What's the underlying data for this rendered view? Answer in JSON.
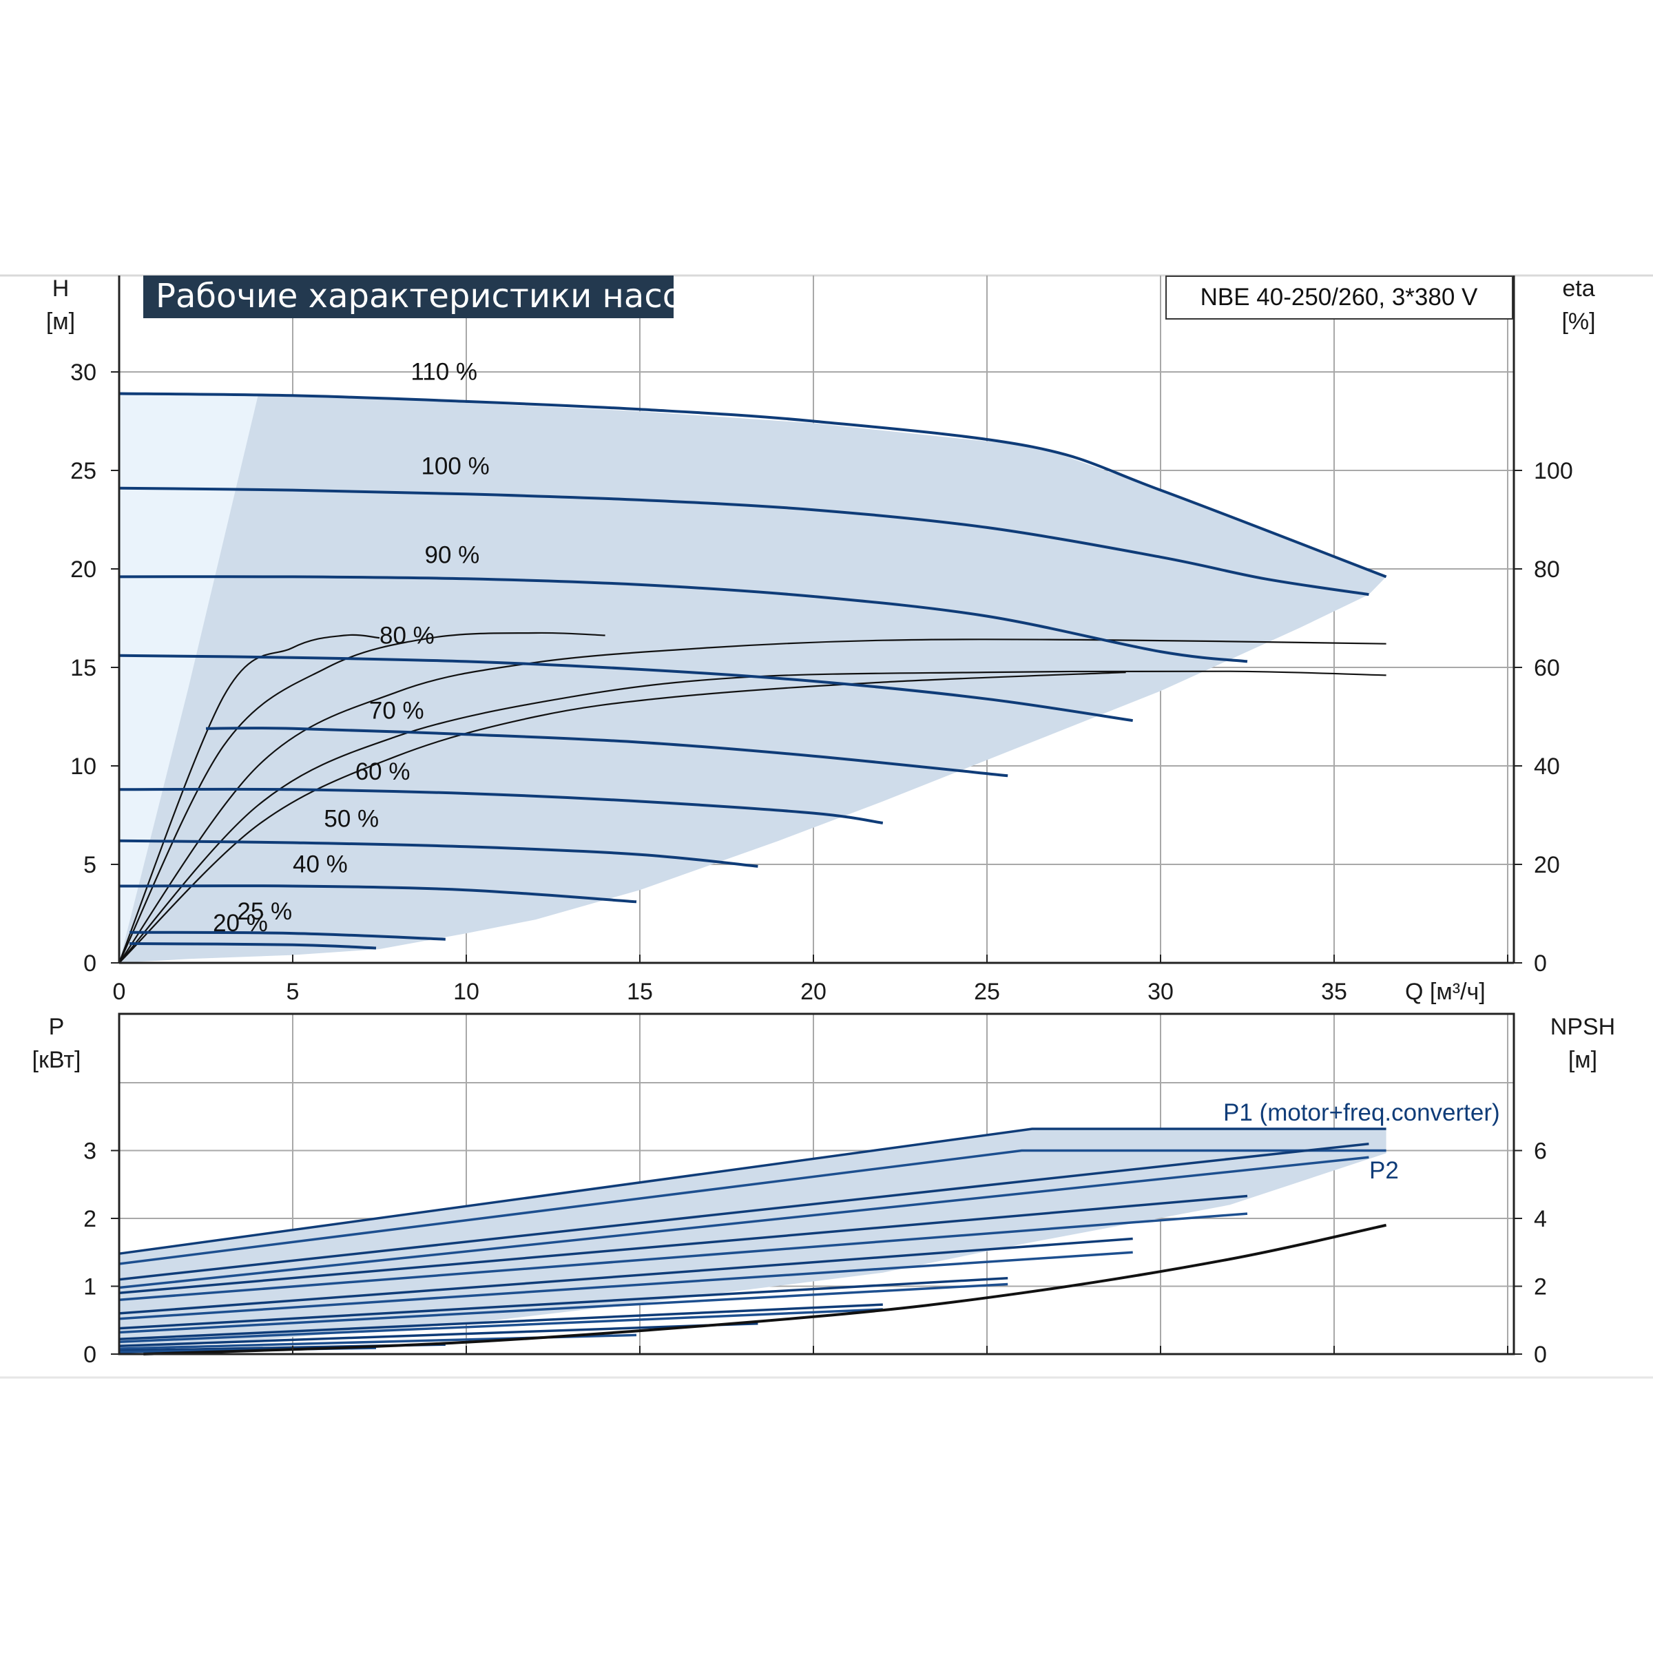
{
  "title": "Рабочие характеристики насоса",
  "model": "NBE 40-250/260, 3*380 V",
  "colors": {
    "curve": "#0f3c78",
    "envelope": "#cfdcea",
    "envelope_light": "#eaf3fb",
    "title_bg": "#23394f",
    "grid": "#a8a8a8",
    "eta": "#111111"
  },
  "chart_data": [
    {
      "type": "line",
      "name": "head",
      "xlabel": "Q [м³/ч]",
      "ylabel_left": [
        "H",
        "[м]"
      ],
      "ylabel_right": [
        "eta",
        "[%]"
      ],
      "xlim": [
        0,
        40
      ],
      "ylim": [
        0,
        30
      ],
      "y2lim": [
        0,
        120
      ],
      "xticks": [
        0,
        5,
        10,
        15,
        20,
        25,
        30,
        35
      ],
      "yticks": [
        0,
        5,
        10,
        15,
        20,
        25,
        30
      ],
      "y2ticks": [
        0,
        20,
        40,
        60,
        80,
        100
      ],
      "grid": true,
      "envelope_head": [
        [
          0,
          29
        ],
        [
          8,
          28.6
        ],
        [
          15,
          28
        ],
        [
          20,
          27.4
        ],
        [
          26.5,
          26.2
        ],
        [
          30,
          24
        ],
        [
          33,
          22
        ],
        [
          36.5,
          19.6
        ],
        [
          36,
          18.7
        ],
        [
          34,
          17
        ],
        [
          30,
          13.8
        ],
        [
          26,
          11
        ],
        [
          22,
          8.2
        ],
        [
          19,
          6.2
        ],
        [
          15,
          3.7
        ],
        [
          12,
          2.2
        ],
        [
          10,
          1.5
        ],
        [
          7.5,
          0.7
        ],
        [
          5,
          0.4
        ],
        [
          2,
          0.2
        ],
        [
          0,
          0
        ]
      ],
      "series": [
        {
          "speed": "110 %",
          "label_xy": [
            8.4,
            29.6
          ],
          "points": [
            [
              0,
              28.9
            ],
            [
              5,
              28.8
            ],
            [
              10,
              28.5
            ],
            [
              15,
              28.1
            ],
            [
              20,
              27.5
            ],
            [
              26.3,
              26.2
            ],
            [
              30,
              24.0
            ],
            [
              36.5,
              19.6
            ]
          ]
        },
        {
          "speed": "100 %",
          "label_xy": [
            8.7,
            24.8
          ],
          "points": [
            [
              0,
              24.1
            ],
            [
              5,
              24.0
            ],
            [
              10,
              23.8
            ],
            [
              15,
              23.5
            ],
            [
              20,
              23.0
            ],
            [
              25,
              22.1
            ],
            [
              30,
              20.6
            ],
            [
              33,
              19.5
            ],
            [
              36,
              18.7
            ]
          ]
        },
        {
          "speed": "90 %",
          "label_xy": [
            8.8,
            20.3
          ],
          "points": [
            [
              0,
              19.6
            ],
            [
              5,
              19.6
            ],
            [
              10,
              19.5
            ],
            [
              15,
              19.2
            ],
            [
              20,
              18.6
            ],
            [
              25,
              17.6
            ],
            [
              30,
              15.8
            ],
            [
              32.5,
              15.3
            ]
          ]
        },
        {
          "speed": "80 %",
          "label_xy": [
            7.5,
            16.2
          ],
          "points": [
            [
              0,
              15.6
            ],
            [
              5,
              15.5
            ],
            [
              10,
              15.3
            ],
            [
              15,
              14.9
            ],
            [
              20,
              14.3
            ],
            [
              25,
              13.4
            ],
            [
              29.2,
              12.3
            ]
          ]
        },
        {
          "speed": "70 %",
          "label_xy": [
            7.2,
            12.4
          ],
          "points": [
            [
              2.5,
              11.9
            ],
            [
              5,
              11.9
            ],
            [
              10,
              11.6
            ],
            [
              15,
              11.2
            ],
            [
              20,
              10.5
            ],
            [
              25.6,
              9.5
            ]
          ]
        },
        {
          "speed": "60 %",
          "label_xy": [
            6.8,
            9.3
          ],
          "points": [
            [
              0,
              8.8
            ],
            [
              5,
              8.8
            ],
            [
              10,
              8.6
            ],
            [
              15,
              8.2
            ],
            [
              20,
              7.6
            ],
            [
              22,
              7.1
            ]
          ]
        },
        {
          "speed": "50 %",
          "label_xy": [
            5.9,
            6.9
          ],
          "points": [
            [
              0,
              6.2
            ],
            [
              5,
              6.1
            ],
            [
              10,
              5.9
            ],
            [
              15,
              5.5
            ],
            [
              18.4,
              4.9
            ]
          ]
        },
        {
          "speed": "40 %",
          "label_xy": [
            5.0,
            4.6
          ],
          "points": [
            [
              0,
              3.9
            ],
            [
              5,
              3.9
            ],
            [
              10,
              3.7
            ],
            [
              14.9,
              3.1
            ]
          ]
        },
        {
          "speed": "25 %",
          "label_xy": [
            3.4,
            2.2
          ],
          "points": [
            [
              0.3,
              1.55
            ],
            [
              5,
              1.5
            ],
            [
              9.4,
              1.2
            ]
          ]
        },
        {
          "speed": "20 %",
          "label_xy": [
            2.7,
            1.6
          ],
          "points": [
            [
              0.3,
              0.98
            ],
            [
              5,
              0.92
            ],
            [
              7.4,
              0.75
            ]
          ]
        }
      ],
      "eta_curves": [
        [
          [
            0,
            0
          ],
          [
            3,
            54
          ],
          [
            5,
            64
          ],
          [
            6.5,
            66.5
          ],
          [
            7.5,
            66
          ]
        ],
        [
          [
            0,
            0
          ],
          [
            3,
            44
          ],
          [
            6,
            60
          ],
          [
            9,
            66
          ],
          [
            12,
            67
          ],
          [
            14,
            66.5
          ]
        ],
        [
          [
            0,
            0
          ],
          [
            4,
            40
          ],
          [
            8,
            55
          ],
          [
            12,
            61
          ],
          [
            17,
            64
          ],
          [
            22,
            65.5
          ],
          [
            28,
            65.6
          ],
          [
            36.5,
            64.8
          ]
        ],
        [
          [
            0,
            0
          ],
          [
            4,
            32
          ],
          [
            8,
            46
          ],
          [
            13,
            54
          ],
          [
            18,
            58
          ],
          [
            25,
            59
          ],
          [
            32,
            59.2
          ],
          [
            36.5,
            58.4
          ]
        ],
        [
          [
            0,
            0
          ],
          [
            4,
            28
          ],
          [
            8,
            42
          ],
          [
            12,
            50
          ],
          [
            16,
            54
          ],
          [
            22,
            57
          ],
          [
            29,
            59
          ]
        ]
      ]
    },
    {
      "type": "line",
      "name": "power",
      "xlabel": "",
      "ylabel_left": [
        "P",
        "[кВт]"
      ],
      "ylabel_right": [
        "NPSH",
        "[м]"
      ],
      "xlim": [
        0,
        40
      ],
      "ylim": [
        0,
        4
      ],
      "y2lim": [
        0,
        8
      ],
      "xticks": [
        0,
        5,
        10,
        15,
        20,
        25,
        30,
        35
      ],
      "yticks": [
        0,
        1,
        2,
        3
      ],
      "y2ticks": [
        0,
        2,
        4,
        6
      ],
      "grid": true,
      "label_p1": "P1 (motor+freq.converter)",
      "label_p2": "P2",
      "envelope_power": [
        [
          0,
          1.48
        ],
        [
          26.3,
          3.32
        ],
        [
          36.5,
          3.32
        ],
        [
          36.5,
          2.96
        ],
        [
          32,
          2.2
        ],
        [
          26,
          1.62
        ],
        [
          22,
          1.2
        ],
        [
          15,
          0.75
        ],
        [
          10,
          0.45
        ],
        [
          5,
          0.25
        ],
        [
          0,
          0.05
        ]
      ],
      "power_curves": [
        [
          [
            0,
            1.48
          ],
          [
            26.3,
            3.32
          ],
          [
            36.5,
            3.32
          ]
        ],
        [
          [
            0,
            1.33
          ],
          [
            26,
            3.0
          ],
          [
            36.5,
            3.0
          ]
        ],
        [
          [
            0,
            1.1
          ],
          [
            36,
            3.1
          ]
        ],
        [
          [
            0,
            0.98
          ],
          [
            36,
            2.9
          ]
        ],
        [
          [
            0,
            0.9
          ],
          [
            32.5,
            2.33
          ]
        ],
        [
          [
            0,
            0.8
          ],
          [
            32.5,
            2.07
          ]
        ],
        [
          [
            0,
            0.6
          ],
          [
            29.2,
            1.7
          ]
        ],
        [
          [
            0,
            0.52
          ],
          [
            29.2,
            1.5
          ]
        ],
        [
          [
            0,
            0.38
          ],
          [
            25.6,
            1.12
          ]
        ],
        [
          [
            0,
            0.32
          ],
          [
            25.6,
            1.03
          ]
        ],
        [
          [
            0,
            0.22
          ],
          [
            22,
            0.73
          ]
        ],
        [
          [
            0,
            0.18
          ],
          [
            22,
            0.66
          ]
        ],
        [
          [
            0,
            0.12
          ],
          [
            18.4,
            0.45
          ]
        ],
        [
          [
            0,
            0.08
          ],
          [
            14.9,
            0.28
          ]
        ],
        [
          [
            0,
            0.05
          ],
          [
            9.4,
            0.14
          ]
        ],
        [
          [
            0,
            0.03
          ],
          [
            7.4,
            0.09
          ]
        ]
      ],
      "npsh_curve": [
        [
          0.7,
          0.0
        ],
        [
          10,
          0.35
        ],
        [
          20,
          1.1
        ],
        [
          26,
          1.8
        ],
        [
          32,
          2.8
        ],
        [
          36.5,
          3.8
        ]
      ]
    }
  ]
}
